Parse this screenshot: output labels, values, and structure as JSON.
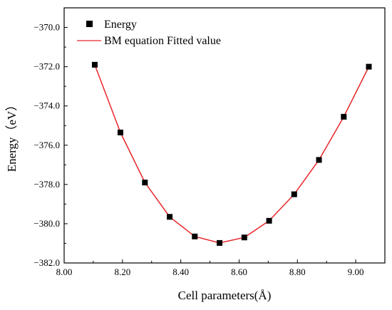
{
  "chart_data": {
    "type": "scatter",
    "xlabel": "Cell parameters(Å)",
    "ylabel": "Energy（eV）",
    "xlim": [
      8.0,
      9.1
    ],
    "ylim": [
      -382.0,
      -369.0
    ],
    "xticks": [
      8.0,
      8.2,
      8.4,
      8.6,
      8.8,
      9.0
    ],
    "xtick_labels": [
      "8.00",
      "8.20",
      "8.40",
      "8.60",
      "8.80",
      "9.00"
    ],
    "yticks": [
      -382.0,
      -380.0,
      -378.0,
      -376.0,
      -374.0,
      -372.0,
      -370.0
    ],
    "ytick_labels": [
      "−382.0",
      "−380.0",
      "−378.0",
      "−376.0",
      "−374.0",
      "−372.0",
      "−370.0"
    ],
    "grid": false,
    "legend_position": "top-left",
    "series": [
      {
        "name": "Energy",
        "kind": "scatter",
        "marker": "square",
        "color": "#000000",
        "x": [
          8.105,
          8.193,
          8.277,
          8.362,
          8.448,
          8.533,
          8.618,
          8.703,
          8.789,
          8.874,
          8.959,
          9.045
        ],
        "y": [
          -371.9,
          -375.35,
          -377.9,
          -379.65,
          -380.65,
          -380.98,
          -380.7,
          -379.85,
          -378.5,
          -376.75,
          -374.55,
          -372.0
        ]
      },
      {
        "name": "BM equation Fitted value",
        "kind": "line",
        "color": "#e8262a",
        "x": [
          8.105,
          8.193,
          8.277,
          8.362,
          8.448,
          8.533,
          8.618,
          8.703,
          8.789,
          8.874,
          8.959,
          9.045
        ],
        "y": [
          -371.9,
          -375.35,
          -377.9,
          -379.65,
          -380.65,
          -380.98,
          -380.7,
          -379.85,
          -378.5,
          -376.75,
          -374.55,
          -372.0
        ]
      }
    ]
  }
}
